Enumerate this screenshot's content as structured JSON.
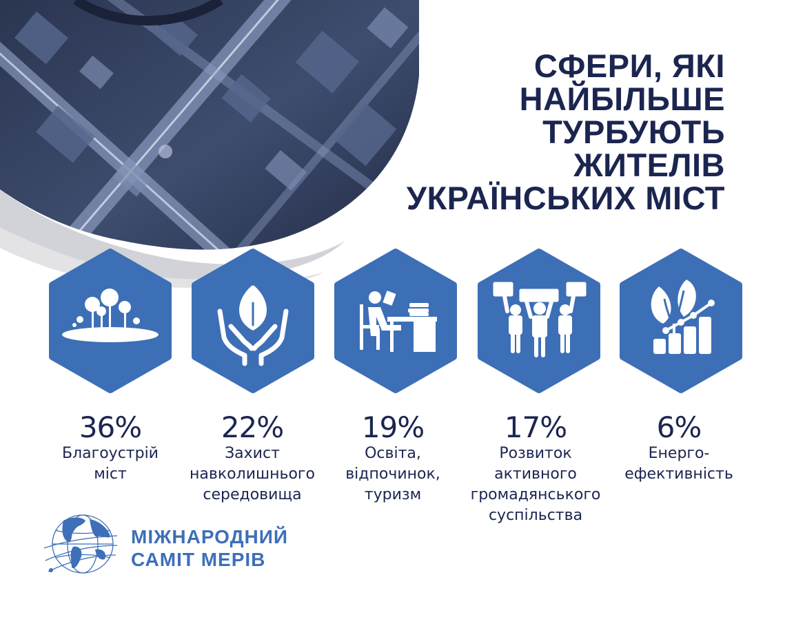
{
  "title": {
    "lines": [
      "СФЕРИ, ЯКІ",
      "НАЙБІЛЬШЕ",
      "ТУРБУЮТЬ",
      "ЖИТЕЛІВ",
      "УКРАЇНСЬКИХ МІСТ"
    ]
  },
  "colors": {
    "accent": "#3d6fb6",
    "dark_text": "#1b2550",
    "brand": "#3e6fb8"
  },
  "categories": [
    {
      "icon": "park-trees-icon",
      "percent": "36%",
      "value": 36,
      "label_lines": [
        "Благоустрій",
        "міст"
      ]
    },
    {
      "icon": "hands-leaf-icon",
      "percent": "22%",
      "value": 22,
      "label_lines": [
        "Захист",
        "навколишнього",
        "середовища"
      ]
    },
    {
      "icon": "person-desk-reading-icon",
      "percent": "19%",
      "value": 19,
      "label_lines": [
        "Освіта,",
        "відпочинок,",
        "туризм"
      ]
    },
    {
      "icon": "protesters-signs-icon",
      "percent": "17%",
      "value": 17,
      "label_lines": [
        "Розвиток",
        "активного",
        "громадянського",
        "суспільства"
      ]
    },
    {
      "icon": "plant-growth-chart-icon",
      "percent": "6%",
      "value": 6,
      "label_lines": [
        "Енерго-",
        "ефективність"
      ]
    }
  ],
  "logo": {
    "icon": "globe-logo-icon",
    "name_lines": [
      "МІЖНАРОДНИЙ",
      "САМІТ МЕРІВ"
    ]
  }
}
